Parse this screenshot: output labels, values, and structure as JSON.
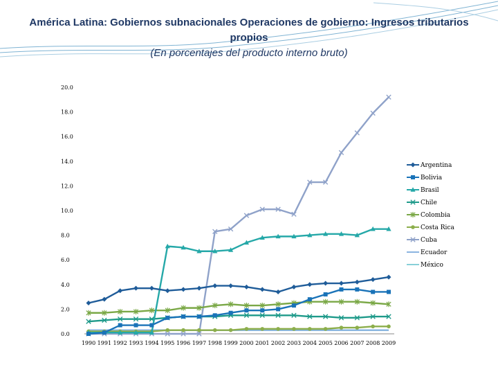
{
  "slide": {
    "title": "América Latina: Gobiernos subnacionales Operaciones de gobierno: Ingresos tributarios propios",
    "subtitle": "(En porcentajes del producto interno bruto)"
  },
  "chart_data": {
    "type": "line",
    "title": "América Latina: Gobiernos subnacionales Operaciones de gobierno: Ingresos tributarios propios",
    "subtitle": "(En porcentajes del producto interno bruto)",
    "xlabel": "",
    "ylabel": "",
    "ylim": [
      0,
      20
    ],
    "yticks": [
      "0.0",
      "2.0",
      "4.0",
      "6.0",
      "8.0",
      "10.0",
      "12.0",
      "14.0",
      "16.0",
      "18.0",
      "20.0"
    ],
    "categories": [
      "1990",
      "1991",
      "1992",
      "1993",
      "1994",
      "1995",
      "1996",
      "1997",
      "1998",
      "1999",
      "2000",
      "2001",
      "2002",
      "2003",
      "2004",
      "2005",
      "2006",
      "2007",
      "2008",
      "2009"
    ],
    "legend_position": "right",
    "series": [
      {
        "name": "Argentina",
        "color": "#1f5c99",
        "marker": "diamond",
        "values": [
          2.5,
          2.8,
          3.5,
          3.7,
          3.7,
          3.5,
          3.6,
          3.7,
          3.9,
          3.9,
          3.8,
          3.6,
          3.4,
          3.8,
          4.0,
          4.1,
          4.1,
          4.2,
          4.4,
          4.6
        ]
      },
      {
        "name": "Bolivia",
        "color": "#1a73b8",
        "marker": "square",
        "values": [
          0.0,
          0.1,
          0.7,
          0.7,
          0.7,
          1.3,
          1.4,
          1.4,
          1.5,
          1.7,
          1.9,
          1.9,
          2.0,
          2.3,
          2.8,
          3.2,
          3.6,
          3.6,
          3.4,
          3.4
        ]
      },
      {
        "name": "Brasil",
        "color": "#25a8a8",
        "marker": "triangle",
        "values": [
          0.1,
          0.1,
          0.1,
          0.1,
          0.1,
          7.1,
          7.0,
          6.7,
          6.7,
          6.8,
          7.4,
          7.8,
          7.9,
          7.9,
          8.0,
          8.1,
          8.1,
          8.0,
          8.5,
          8.5
        ]
      },
      {
        "name": "Chile",
        "color": "#1e9a8a",
        "marker": "x",
        "values": [
          1.0,
          1.1,
          1.2,
          1.2,
          1.2,
          1.3,
          1.4,
          1.4,
          1.4,
          1.5,
          1.5,
          1.5,
          1.5,
          1.5,
          1.4,
          1.4,
          1.3,
          1.3,
          1.4,
          1.4
        ]
      },
      {
        "name": "Colombia",
        "color": "#7aa846",
        "marker": "star",
        "values": [
          1.7,
          1.7,
          1.8,
          1.8,
          1.9,
          1.9,
          2.1,
          2.1,
          2.3,
          2.4,
          2.3,
          2.3,
          2.4,
          2.5,
          2.6,
          2.6,
          2.6,
          2.6,
          2.5,
          2.4
        ]
      },
      {
        "name": "Costa Rica",
        "color": "#8cae4b",
        "marker": "circle",
        "values": [
          0.2,
          0.2,
          0.2,
          0.2,
          0.2,
          0.3,
          0.3,
          0.3,
          0.3,
          0.3,
          0.4,
          0.4,
          0.4,
          0.4,
          0.4,
          0.4,
          0.5,
          0.5,
          0.6,
          0.6
        ]
      },
      {
        "name": "Cuba",
        "color": "#8fa2c9",
        "marker": "x",
        "values": [
          0.0,
          0.0,
          0.0,
          0.0,
          0.0,
          0.0,
          0.0,
          0.0,
          8.3,
          8.5,
          9.6,
          10.1,
          10.1,
          9.7,
          12.3,
          12.3,
          14.7,
          16.3,
          17.9,
          19.2
        ]
      },
      {
        "name": "Ecuador",
        "color": "#8ab4e0",
        "marker": "none",
        "values": [
          0.3,
          0.3,
          0.3,
          0.3,
          0.3,
          0.3,
          0.3,
          0.3,
          0.3,
          0.3,
          0.3,
          0.3,
          0.3,
          0.3,
          0.3,
          0.3,
          0.3,
          0.3,
          0.3,
          0.3
        ]
      },
      {
        "name": "México",
        "color": "#88d0d8",
        "marker": "none",
        "values": [
          0.2,
          0.2,
          0.2,
          0.2,
          0.3,
          0.3,
          0.3,
          0.3,
          0.3,
          0.3,
          0.3,
          0.3,
          0.3,
          0.3,
          0.3,
          0.3,
          0.3,
          0.3,
          0.3,
          0.3
        ]
      }
    ]
  }
}
